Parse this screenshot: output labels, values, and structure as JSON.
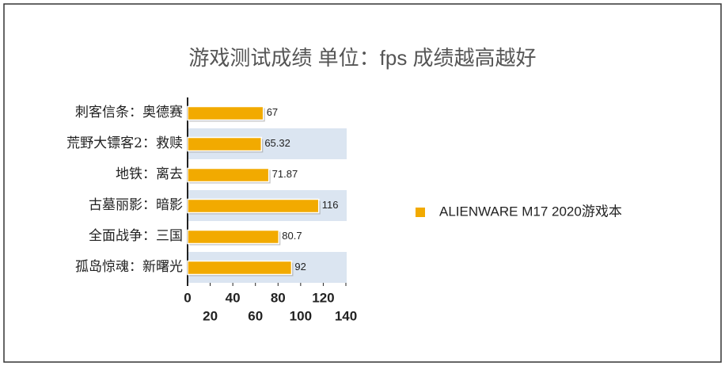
{
  "chart_data": {
    "type": "bar",
    "orientation": "horizontal",
    "title": "游戏测试成绩 单位：fps 成绩越高越好",
    "categories": [
      "刺客信条：奥德赛",
      "荒野大镖客2：救赎",
      "地铁：离去",
      "古墓丽影：暗影",
      "全面战争：三国",
      "孤岛惊魂：新曙光"
    ],
    "series": [
      {
        "name": "ALIENWARE M17 2020游戏本",
        "color": "#f2aa00",
        "values": [
          67,
          65.32,
          71.87,
          116,
          80.7,
          92
        ]
      }
    ],
    "xlim": [
      0,
      140
    ],
    "xticks": [
      0,
      20,
      40,
      60,
      80,
      100,
      120,
      140
    ],
    "grid": false,
    "legend": "right"
  }
}
